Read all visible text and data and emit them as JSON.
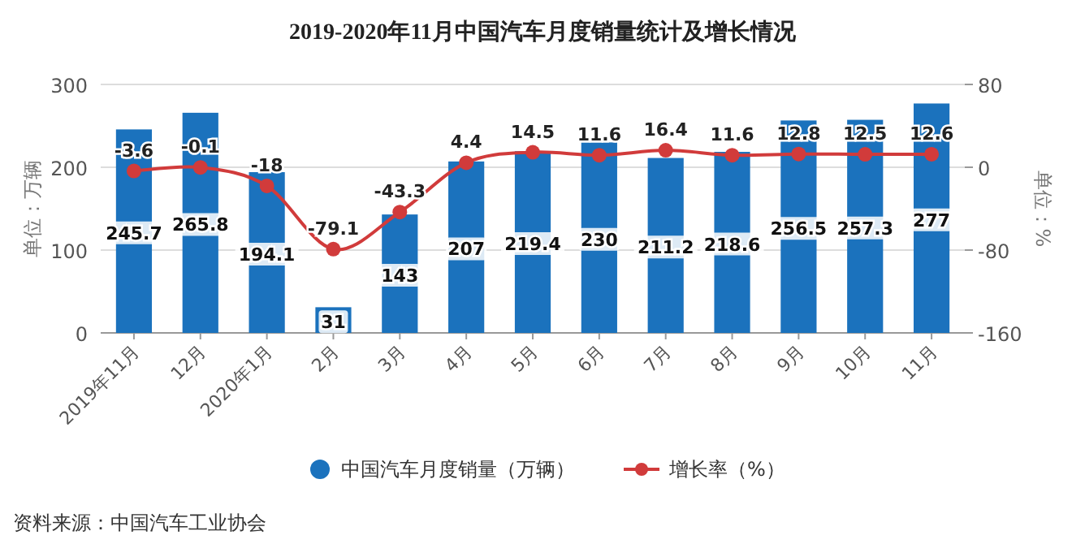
{
  "chart_data": {
    "type": "bar",
    "title": "2019-2020年11月中国汽车月度销量统计及增长情况",
    "categories": [
      "2019年11月",
      "12月",
      "2020年1月",
      "2月",
      "3月",
      "4月",
      "5月",
      "6月",
      "7月",
      "8月",
      "9月",
      "10月",
      "11月"
    ],
    "series": [
      {
        "name": "中国汽车月度销量（万辆）",
        "color": "#1b72bd",
        "values": [
          245.7,
          265.8,
          194.1,
          31,
          143,
          207,
          219.4,
          230,
          211.2,
          218.6,
          256.5,
          257.3,
          277
        ]
      },
      {
        "name": "增长率（%）",
        "type": "line",
        "axis": "y2",
        "color": "#d13b3b",
        "values": [
          -3.6,
          -0.1,
          -18,
          -79.1,
          -43.3,
          4.4,
          14.5,
          11.6,
          16.4,
          11.6,
          12.8,
          12.5,
          12.6
        ]
      }
    ],
    "data_labels": true,
    "ylabel": "单位：万辆",
    "y2label": "单位：%",
    "ylim": [
      0,
      300
    ],
    "yticks": [
      0,
      100,
      200,
      300
    ],
    "y2lim": [
      -160,
      80
    ],
    "y2ticks": [
      -160,
      -80,
      0,
      80
    ],
    "grid": "y",
    "legend": "bottom",
    "marker": "circle",
    "line_style": "solid",
    "annotations": [
      "资料来源：中国汽车工业协会"
    ]
  }
}
